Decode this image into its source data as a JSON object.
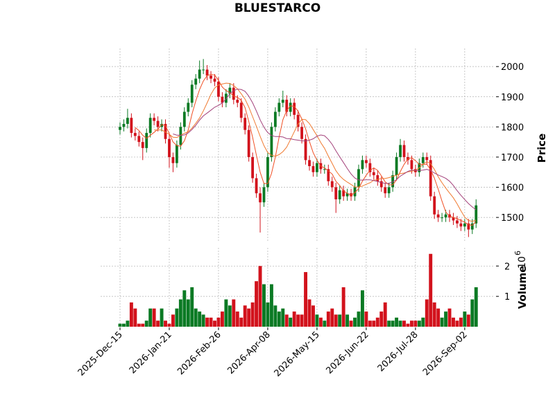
{
  "chart_data": {
    "type": "candlestick",
    "title": "BLUESTARCO",
    "y_label": "Price",
    "volume_label": "Volume",
    "volume_exponent": {
      "base": "10",
      "power": "6"
    },
    "categories": [
      "2025-Dec-15",
      null,
      null,
      null,
      null,
      null,
      null,
      null,
      null,
      null,
      null,
      null,
      null,
      "2026-Jan-21",
      null,
      null,
      null,
      null,
      null,
      null,
      null,
      null,
      null,
      null,
      null,
      null,
      "2026-Feb-26",
      null,
      null,
      null,
      null,
      null,
      null,
      null,
      null,
      null,
      null,
      null,
      null,
      "2026-Apr-08",
      null,
      null,
      null,
      null,
      null,
      null,
      null,
      null,
      null,
      null,
      null,
      null,
      "2026-May-15",
      null,
      null,
      null,
      null,
      null,
      null,
      null,
      null,
      null,
      null,
      null,
      null,
      "2026-Jun-22",
      null,
      null,
      null,
      null,
      null,
      null,
      null,
      null,
      null,
      null,
      null,
      null,
      "2026-Jul-28",
      null,
      null,
      null,
      null,
      null,
      null,
      null,
      null,
      null,
      null,
      null,
      null,
      "2026-Sep-02",
      null,
      null,
      null
    ],
    "open": [
      1790,
      1800,
      1810,
      1830,
      1780,
      1770,
      1750,
      1730,
      1780,
      1830,
      1820,
      1800,
      1810,
      1760,
      1700,
      1680,
      1740,
      1800,
      1850,
      1880,
      1940,
      1960,
      1990,
      1990,
      1970,
      1960,
      1950,
      1900,
      1880,
      1910,
      1930,
      1890,
      1880,
      1830,
      1790,
      1700,
      1630,
      1580,
      1550,
      1600,
      1700,
      1800,
      1850,
      1880,
      1890,
      1850,
      1880,
      1840,
      1800,
      1760,
      1690,
      1670,
      1650,
      1680,
      1660,
      1660,
      1620,
      1600,
      1560,
      1590,
      1570,
      1580,
      1570,
      1600,
      1660,
      1690,
      1680,
      1650,
      1640,
      1620,
      1600,
      1580,
      1600,
      1640,
      1700,
      1740,
      1700,
      1690,
      1660,
      1650,
      1680,
      1700,
      1690,
      1570,
      1510,
      1500,
      1500,
      1510,
      1500,
      1490,
      1480,
      1470,
      1480,
      1460,
      1480
    ],
    "high": [
      1815,
      1825,
      1860,
      1845,
      1795,
      1785,
      1765,
      1795,
      1845,
      1845,
      1835,
      1825,
      1825,
      1775,
      1715,
      1755,
      1815,
      1865,
      1895,
      1955,
      1975,
      2020,
      2025,
      2005,
      1985,
      1975,
      1965,
      1915,
      1925,
      1945,
      1945,
      1905,
      1895,
      1845,
      1805,
      1715,
      1645,
      1600,
      1615,
      1715,
      1815,
      1865,
      1895,
      1920,
      1905,
      1895,
      1895,
      1855,
      1815,
      1775,
      1705,
      1685,
      1695,
      1695,
      1675,
      1675,
      1635,
      1615,
      1605,
      1605,
      1595,
      1595,
      1615,
      1675,
      1705,
      1705,
      1695,
      1665,
      1655,
      1635,
      1615,
      1615,
      1655,
      1715,
      1760,
      1755,
      1715,
      1705,
      1675,
      1695,
      1715,
      1715,
      1705,
      1585,
      1525,
      1515,
      1525,
      1525,
      1515,
      1505,
      1495,
      1495,
      1495,
      1495,
      1560
    ],
    "low": [
      1775,
      1785,
      1795,
      1765,
      1755,
      1735,
      1690,
      1715,
      1765,
      1805,
      1785,
      1785,
      1745,
      1665,
      1650,
      1665,
      1725,
      1785,
      1835,
      1865,
      1925,
      1945,
      1975,
      1955,
      1945,
      1935,
      1885,
      1865,
      1865,
      1895,
      1875,
      1865,
      1815,
      1775,
      1685,
      1615,
      1565,
      1450,
      1535,
      1585,
      1685,
      1785,
      1835,
      1865,
      1835,
      1835,
      1825,
      1785,
      1745,
      1675,
      1655,
      1635,
      1635,
      1645,
      1645,
      1605,
      1585,
      1515,
      1545,
      1555,
      1555,
      1555,
      1555,
      1585,
      1645,
      1665,
      1635,
      1625,
      1605,
      1585,
      1565,
      1565,
      1585,
      1625,
      1685,
      1685,
      1675,
      1645,
      1635,
      1635,
      1665,
      1675,
      1555,
      1495,
      1485,
      1485,
      1485,
      1485,
      1475,
      1465,
      1455,
      1455,
      1435,
      1445,
      1465
    ],
    "close": [
      1800,
      1810,
      1830,
      1780,
      1770,
      1750,
      1730,
      1780,
      1830,
      1820,
      1800,
      1810,
      1760,
      1700,
      1680,
      1740,
      1800,
      1850,
      1880,
      1940,
      1960,
      1990,
      1990,
      1970,
      1960,
      1950,
      1900,
      1880,
      1910,
      1930,
      1890,
      1880,
      1830,
      1790,
      1700,
      1630,
      1580,
      1550,
      1600,
      1700,
      1800,
      1850,
      1880,
      1890,
      1850,
      1880,
      1840,
      1800,
      1760,
      1690,
      1670,
      1650,
      1680,
      1660,
      1660,
      1620,
      1600,
      1560,
      1590,
      1570,
      1580,
      1570,
      1600,
      1660,
      1690,
      1680,
      1650,
      1640,
      1620,
      1600,
      1580,
      1600,
      1640,
      1700,
      1740,
      1700,
      1690,
      1660,
      1650,
      1680,
      1700,
      1690,
      1570,
      1510,
      1500,
      1500,
      1510,
      1500,
      1490,
      1480,
      1470,
      1480,
      1460,
      1480,
      1540
    ],
    "volume": [
      0.1,
      0.1,
      0.2,
      0.8,
      0.6,
      0.1,
      0.1,
      0.2,
      0.6,
      0.6,
      0.2,
      0.6,
      0.2,
      0.1,
      0.4,
      0.6,
      0.9,
      1.2,
      0.9,
      1.3,
      0.6,
      0.5,
      0.4,
      0.3,
      0.3,
      0.2,
      0.3,
      0.5,
      0.9,
      0.7,
      0.9,
      0.5,
      0.3,
      0.7,
      0.6,
      0.8,
      1.5,
      2.0,
      1.4,
      0.8,
      1.4,
      0.7,
      0.5,
      0.6,
      0.4,
      0.3,
      0.5,
      0.4,
      0.4,
      1.8,
      0.9,
      0.7,
      0.4,
      0.3,
      0.2,
      0.5,
      0.6,
      0.4,
      0.4,
      1.3,
      0.4,
      0.2,
      0.3,
      0.5,
      1.2,
      0.5,
      0.2,
      0.2,
      0.3,
      0.5,
      0.8,
      0.2,
      0.2,
      0.3,
      0.2,
      0.2,
      0.1,
      0.2,
      0.2,
      0.2,
      0.3,
      0.9,
      2.4,
      0.8,
      0.6,
      0.3,
      0.5,
      0.6,
      0.3,
      0.2,
      0.3,
      0.5,
      0.4,
      0.9,
      1.3
    ],
    "up_color": "#0b7a24",
    "down_color": "#d2121c",
    "mav": [
      {
        "window": 5,
        "color": "#f04e23"
      },
      {
        "window": 10,
        "color": "#f07a30"
      },
      {
        "window": 15,
        "color": "#a3417a"
      }
    ],
    "ylim": [
      1420,
      2060
    ],
    "yticks": [
      1500,
      1600,
      1700,
      1800,
      1900,
      2000
    ],
    "volume_lim": [
      0,
      2.6
    ],
    "volume_ticks": [
      1,
      2
    ],
    "grid": true
  }
}
